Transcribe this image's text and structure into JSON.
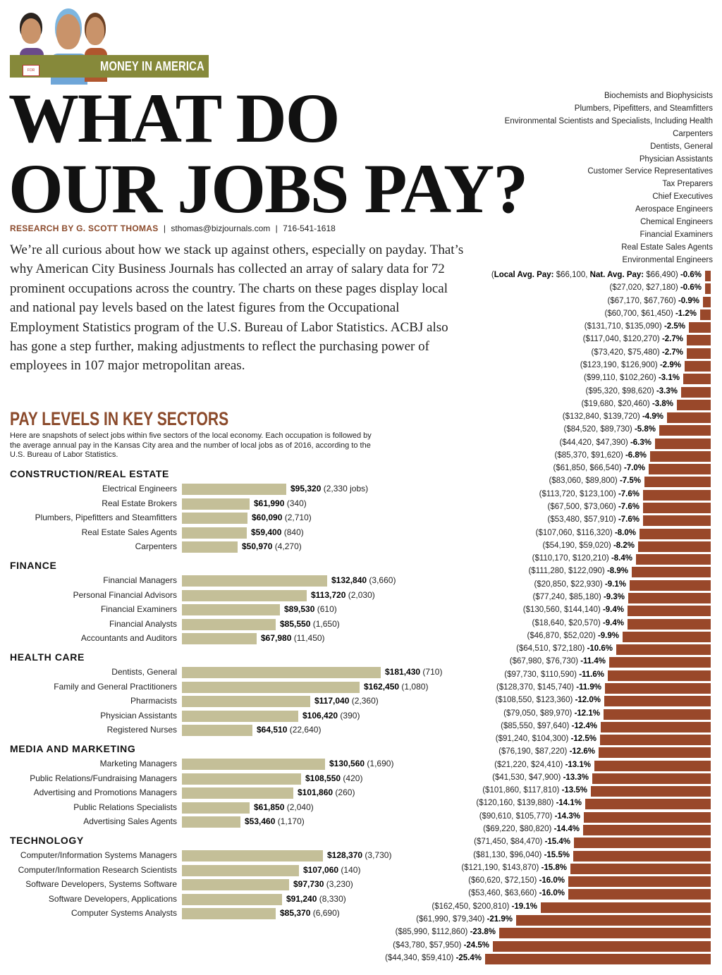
{
  "banner": {
    "label": "MONEY IN AMERICA",
    "sign_text": "FOR SALE",
    "color": "#86893a"
  },
  "title": {
    "line1": "WHAT DO",
    "line2": "OUR JOBS PAY?"
  },
  "byline": {
    "author": "RESEARCH BY G. SCOTT THOMAS",
    "email": "sthomas@bizjournals.com",
    "phone": "716-541-1618",
    "sep": "|"
  },
  "intro": "We’re all curious about how we stack up against others, especially on payday. That’s why American City Business Journals has collected an array of salary data for 72 prominent occupations across the country. The charts on these pages display local and national pay levels based on the latest figures from the Occupational Employment Statistics program of the U.S. Bureau of Labor Statistics. ACBJ also has gone a step further, making adjustments to reflect the purchasing power of employees in 107 major metropolitan areas.",
  "colors": {
    "accent": "#8b4a2b",
    "sector_bar": "#c4bf98",
    "diff_bar": "#99482a"
  },
  "chart_data": [
    {
      "type": "bar",
      "orientation": "horizontal",
      "title": "PAY LEVELS IN KEY SECTORS",
      "subtitle": "Here are snapshots of select jobs within five sectors of the local economy. Each occupation is followed by the average annual pay in the Kansas City area and the number of local jobs as of 2016, according to the U.S. Bureau of Labor Statistics.",
      "jobs_suffix": "jobs",
      "sectors": [
        {
          "name": "CONSTRUCTION/REAL ESTATE",
          "items": [
            {
              "job": "Electrical Engineers",
              "pay": 95320,
              "pay_label": "$95,320",
              "jobs": "2,330"
            },
            {
              "job": "Real Estate Brokers",
              "pay": 61990,
              "pay_label": "$61,990",
              "jobs": "340"
            },
            {
              "job": "Plumbers, Pipefitters and Steamfitters",
              "pay": 60090,
              "pay_label": "$60,090",
              "jobs": "2,710"
            },
            {
              "job": "Real Estate Sales Agents",
              "pay": 59400,
              "pay_label": "$59,400",
              "jobs": "840"
            },
            {
              "job": "Carpenters",
              "pay": 50970,
              "pay_label": "$50,970",
              "jobs": "4,270"
            }
          ]
        },
        {
          "name": "FINANCE",
          "items": [
            {
              "job": "Financial Managers",
              "pay": 132840,
              "pay_label": "$132,840",
              "jobs": "3,660"
            },
            {
              "job": "Personal Financial Advisors",
              "pay": 113720,
              "pay_label": "$113,720",
              "jobs": "2,030"
            },
            {
              "job": "Financial Examiners",
              "pay": 89530,
              "pay_label": "$89,530",
              "jobs": "610"
            },
            {
              "job": "Financial Analysts",
              "pay": 85550,
              "pay_label": "$85,550",
              "jobs": "1,650"
            },
            {
              "job": "Accountants and Auditors",
              "pay": 67980,
              "pay_label": "$67,980",
              "jobs": "11,450"
            }
          ]
        },
        {
          "name": "HEALTH CARE",
          "items": [
            {
              "job": "Dentists, General",
              "pay": 181430,
              "pay_label": "$181,430",
              "jobs": "710"
            },
            {
              "job": "Family and General Practitioners",
              "pay": 162450,
              "pay_label": "$162,450",
              "jobs": "1,080"
            },
            {
              "job": "Pharmacists",
              "pay": 117040,
              "pay_label": "$117,040",
              "jobs": "2,360"
            },
            {
              "job": "Physician Assistants",
              "pay": 106420,
              "pay_label": "$106,420",
              "jobs": "390"
            },
            {
              "job": "Registered Nurses",
              "pay": 64510,
              "pay_label": "$64,510",
              "jobs": "22,640"
            }
          ]
        },
        {
          "name": "MEDIA AND MARKETING",
          "items": [
            {
              "job": "Marketing Managers",
              "pay": 130560,
              "pay_label": "$130,560",
              "jobs": "1,690"
            },
            {
              "job": "Public Relations/Fundraising Managers",
              "pay": 108550,
              "pay_label": "$108,550",
              "jobs": "420"
            },
            {
              "job": "Advertising and Promotions Managers",
              "pay": 101860,
              "pay_label": "$101,860",
              "jobs": "260"
            },
            {
              "job": "Public Relations Specialists",
              "pay": 61850,
              "pay_label": "$61,850",
              "jobs": "2,040"
            },
            {
              "job": "Advertising Sales Agents",
              "pay": 53460,
              "pay_label": "$53,460",
              "jobs": "1,170"
            }
          ]
        },
        {
          "name": "TECHNOLOGY",
          "items": [
            {
              "job": "Computer/Information Systems Managers",
              "pay": 128370,
              "pay_label": "$128,370",
              "jobs": "3,730"
            },
            {
              "job": "Computer/Information Research Scientists",
              "pay": 107060,
              "pay_label": "$107,060",
              "jobs": "140"
            },
            {
              "job": "Software Developers, Systems Software",
              "pay": 97730,
              "pay_label": "$97,730",
              "jobs": "3,230"
            },
            {
              "job": "Software Developers, Applications",
              "pay": 91240,
              "pay_label": "$91,240",
              "jobs": "8,330"
            },
            {
              "job": "Computer Systems Analysts",
              "pay": 85370,
              "pay_label": "$85,370",
              "jobs": "6,690"
            }
          ]
        }
      ]
    },
    {
      "type": "bar",
      "orientation": "horizontal",
      "occupations": [
        "Biochemists and Biophysicists",
        "Plumbers, Pipefitters, and Steamfitters",
        "Environmental Scientists and Specialists, Including Health",
        "Carpenters",
        "Dentists, General",
        "Physician Assistants",
        "Customer Service Representatives",
        "Tax Preparers",
        "Chief Executives",
        "Aerospace Engineers",
        "Chemical Engineers",
        "Financial Examiners",
        "Real Estate Sales Agents",
        "Environmental Engineers"
      ],
      "first_row_labels": {
        "local": "Local Avg. Pay:",
        "national": "Nat. Avg. Pay:"
      },
      "rows": [
        {
          "local": "$66,100",
          "national": "$66,490",
          "pct": -0.6
        },
        {
          "local": "$27,020",
          "national": "$27,180",
          "pct": -0.6
        },
        {
          "local": "$67,170",
          "national": "$67,760",
          "pct": -0.9
        },
        {
          "local": "$60,700",
          "national": "$61,450",
          "pct": -1.2
        },
        {
          "local": "$131,710",
          "national": "$135,090",
          "pct": -2.5
        },
        {
          "local": "$117,040",
          "national": "$120,270",
          "pct": -2.7
        },
        {
          "local": "$73,420",
          "national": "$75,480",
          "pct": -2.7
        },
        {
          "local": "$123,190",
          "national": "$126,900",
          "pct": -2.9
        },
        {
          "local": "$99,110",
          "national": "$102,260",
          "pct": -3.1
        },
        {
          "local": "$95,320",
          "national": "$98,620",
          "pct": -3.3
        },
        {
          "local": "$19,680",
          "national": "$20,460",
          "pct": -3.8
        },
        {
          "local": "$132,840",
          "national": "$139,720",
          "pct": -4.9
        },
        {
          "local": "$84,520",
          "national": "$89,730",
          "pct": -5.8
        },
        {
          "local": "$44,420",
          "national": "$47,390",
          "pct": -6.3
        },
        {
          "local": "$85,370",
          "national": "$91,620",
          "pct": -6.8
        },
        {
          "local": "$61,850",
          "national": "$66,540",
          "pct": -7.0
        },
        {
          "local": "$83,060",
          "national": "$89,800",
          "pct": -7.5
        },
        {
          "local": "$113,720",
          "national": "$123,100",
          "pct": -7.6
        },
        {
          "local": "$67,500",
          "national": "$73,060",
          "pct": -7.6
        },
        {
          "local": "$53,480",
          "national": "$57,910",
          "pct": -7.6
        },
        {
          "local": "$107,060",
          "national": "$116,320",
          "pct": -8.0
        },
        {
          "local": "$54,190",
          "national": "$59,020",
          "pct": -8.2
        },
        {
          "local": "$110,170",
          "national": "$120,210",
          "pct": -8.4
        },
        {
          "local": "$111,280",
          "national": "$122,090",
          "pct": -8.9
        },
        {
          "local": "$20,850",
          "national": "$22,930",
          "pct": -9.1
        },
        {
          "local": "$77,240",
          "national": "$85,180",
          "pct": -9.3
        },
        {
          "local": "$130,560",
          "national": "$144,140",
          "pct": -9.4
        },
        {
          "local": "$18,640",
          "national": "$20,570",
          "pct": -9.4
        },
        {
          "local": "$46,870",
          "national": "$52,020",
          "pct": -9.9
        },
        {
          "local": "$64,510",
          "national": "$72,180",
          "pct": -10.6
        },
        {
          "local": "$67,980",
          "national": "$76,730",
          "pct": -11.4
        },
        {
          "local": "$97,730",
          "national": "$110,590",
          "pct": -11.6
        },
        {
          "local": "$128,370",
          "national": "$145,740",
          "pct": -11.9
        },
        {
          "local": "$108,550",
          "national": "$123,360",
          "pct": -12.0
        },
        {
          "local": "$79,050",
          "national": "$89,970",
          "pct": -12.1
        },
        {
          "local": "$85,550",
          "national": "$97,640",
          "pct": -12.4
        },
        {
          "local": "$91,240",
          "national": "$104,300",
          "pct": -12.5
        },
        {
          "local": "$76,190",
          "national": "$87,220",
          "pct": -12.6
        },
        {
          "local": "$21,220",
          "national": "$24,410",
          "pct": -13.1
        },
        {
          "local": "$41,530",
          "national": "$47,900",
          "pct": -13.3
        },
        {
          "local": "$101,860",
          "national": "$117,810",
          "pct": -13.5
        },
        {
          "local": "$120,160",
          "national": "$139,880",
          "pct": -14.1
        },
        {
          "local": "$90,610",
          "national": "$105,770",
          "pct": -14.3
        },
        {
          "local": "$69,220",
          "national": "$80,820",
          "pct": -14.4
        },
        {
          "local": "$71,450",
          "national": "$84,470",
          "pct": -15.4
        },
        {
          "local": "$81,130",
          "national": "$96,040",
          "pct": -15.5
        },
        {
          "local": "$121,190",
          "national": "$143,870",
          "pct": -15.8
        },
        {
          "local": "$60,620",
          "national": "$72,150",
          "pct": -16.0
        },
        {
          "local": "$53,460",
          "national": "$63,660",
          "pct": -16.0
        },
        {
          "local": "$162,450",
          "national": "$200,810",
          "pct": -19.1
        },
        {
          "local": "$61,990",
          "national": "$79,340",
          "pct": -21.9
        },
        {
          "local": "$85,990",
          "national": "$112,860",
          "pct": -23.8
        },
        {
          "local": "$43,780",
          "national": "$57,950",
          "pct": -24.5
        },
        {
          "local": "$44,340",
          "national": "$59,410",
          "pct": -25.4
        }
      ]
    }
  ]
}
